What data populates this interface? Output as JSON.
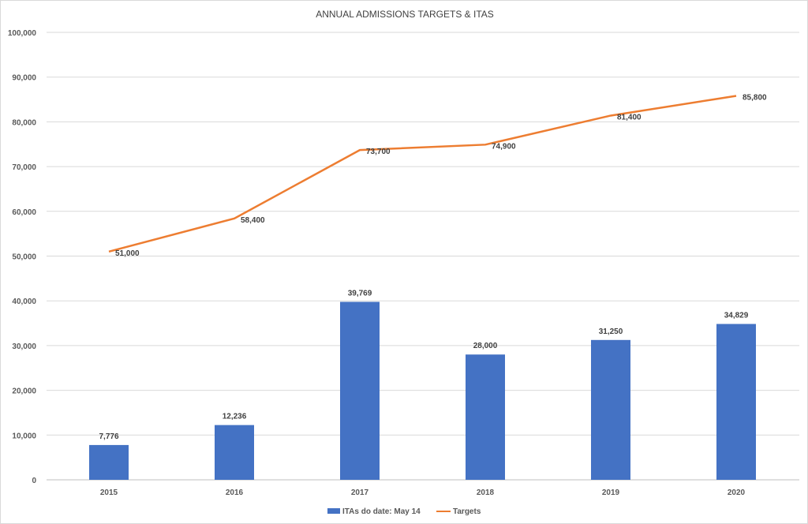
{
  "chart_data": {
    "type": "bar+line",
    "title": "ANNUAL ADMISSIONS TARGETS & ITAS",
    "categories": [
      "2015",
      "2016",
      "2017",
      "2018",
      "2019",
      "2020"
    ],
    "series": [
      {
        "name": "ITAs do date: May 14",
        "type": "bar",
        "color": "#4472c4",
        "values": [
          7776,
          12236,
          39769,
          28000,
          31250,
          34829
        ],
        "labels": [
          "7,776",
          "12,236",
          "39,769",
          "28,000",
          "31,250",
          "34,829"
        ]
      },
      {
        "name": "Targets",
        "type": "line",
        "color": "#ed7d31",
        "values": [
          51000,
          58400,
          73700,
          74900,
          81400,
          85800
        ],
        "labels": [
          "51,000",
          "58,400",
          "73,700",
          "74,900",
          "81,400",
          "85,800"
        ]
      }
    ],
    "ylim": [
      0,
      100000
    ],
    "yticks": [
      "0",
      "10,000",
      "20,000",
      "30,000",
      "40,000",
      "50,000",
      "60,000",
      "70,000",
      "80,000",
      "90,000",
      "100,000"
    ],
    "grid": true,
    "legend": "bottom"
  }
}
